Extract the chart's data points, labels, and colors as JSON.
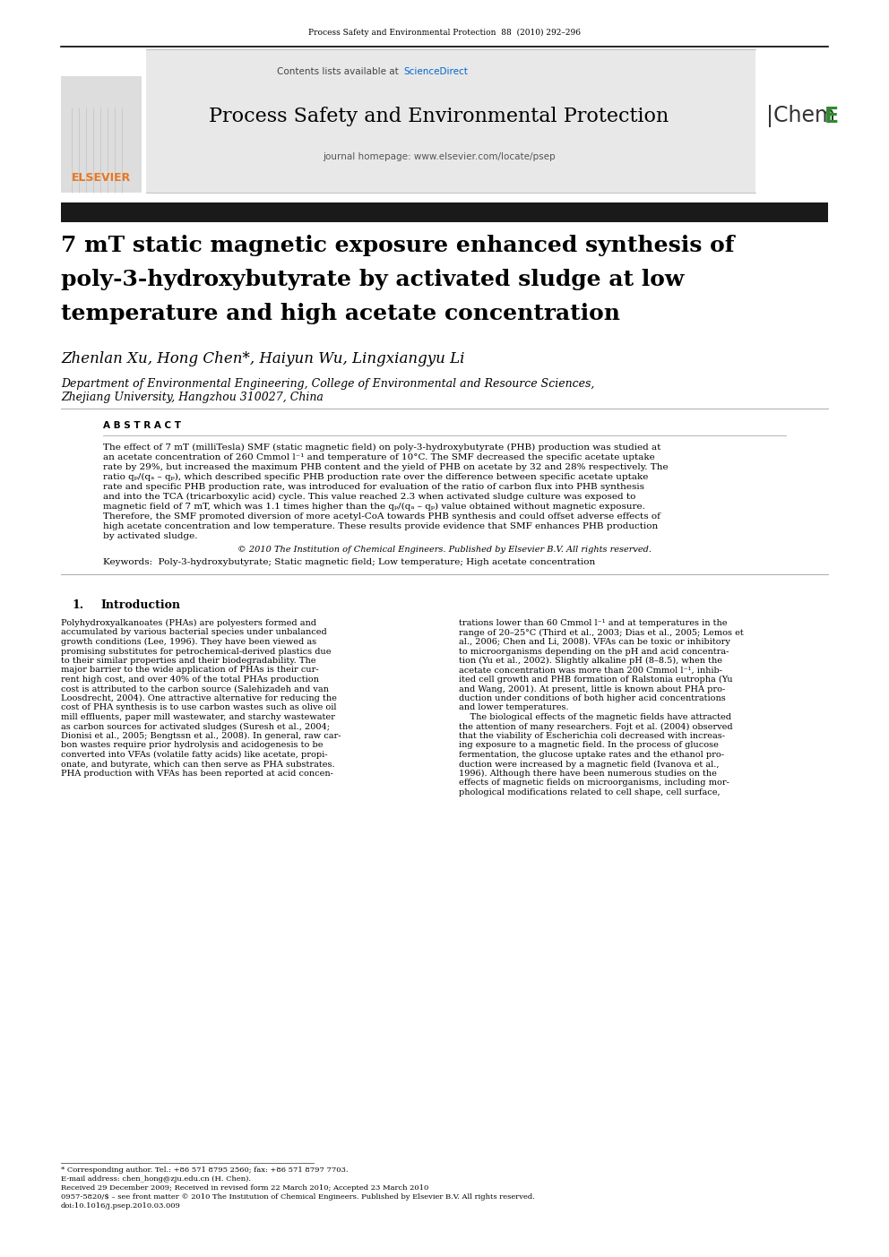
{
  "page_bg": "#ffffff",
  "header_journal": "Process Safety and Environmental Protection  88  (2010) 292–296",
  "header_journal_color": "#000000",
  "banner_bg": "#e8e8e8",
  "banner_contents_text": "Contents lists available at ",
  "banner_sciencedirect_text": "ScienceDirect",
  "banner_sciencedirect_color": "#0066cc",
  "banner_journal_name": "Process Safety and Environmental Protection",
  "banner_journal_name_size": 16,
  "banner_homepage": "journal homepage: www.elsevier.com/locate/psep",
  "ichemE_color_E": "#2e8b2e",
  "elsevier_color": "#e87722",
  "title_bar_color": "#1a1a1a",
  "article_title_line1": "7 mT static magnetic exposure enhanced synthesis of",
  "article_title_line2": "poly-3-hydroxybutyrate by activated sludge at low",
  "article_title_line3": "temperature and high acetate concentration",
  "article_title_size": 18,
  "authors": "Zhenlan Xu, Hong Chen*, Haiyun Wu, Lingxiangyu Li",
  "authors_size": 12,
  "affil1": "Department of Environmental Engineering, College of Environmental and Resource Sciences,",
  "affil2": "Zhejiang University, Hangzhou 310027, China",
  "affil_size": 9,
  "abstract_label": "A B S T R A C T",
  "abstract_text_lines": [
    "The effect of 7 mT (milliTesla) SMF (static magnetic field) on poly-3-hydroxybutyrate (PHB) production was studied at",
    "an acetate concentration of 260 Cmmol l⁻¹ and temperature of 10°C. The SMF decreased the specific acetate uptake",
    "rate by 29%, but increased the maximum PHB content and the yield of PHB on acetate by 32 and 28% respectively. The",
    "ratio qₚ/(qₐ – qₚ), which described specific PHB production rate over the difference between specific acetate uptake",
    "rate and specific PHB production rate, was introduced for evaluation of the ratio of carbon flux into PHB synthesis",
    "and into the TCA (tricarboxylic acid) cycle. This value reached 2.3 when activated sludge culture was exposed to",
    "magnetic field of 7 mT, which was 1.1 times higher than the qₚ/(qₐ – qₚ) value obtained without magnetic exposure.",
    "Therefore, the SMF promoted diversion of more acetyl-CoA towards PHB synthesis and could offset adverse effects of",
    "high acetate concentration and low temperature. These results provide evidence that SMF enhances PHB production",
    "by activated sludge."
  ],
  "abstract_text_size": 7.5,
  "copyright_text": "© 2010 The Institution of Chemical Engineers. Published by Elsevier B.V. All rights reserved.",
  "keywords_text": "Keywords:  Poly-3-hydroxybutyrate; Static magnetic field; Low temperature; High acetate concentration",
  "intro_col1_lines": [
    "Polyhydroxyalkanoates (PHAs) are polyesters formed and",
    "accumulated by various bacterial species under unbalanced",
    "growth conditions (Lee, 1996). They have been viewed as",
    "promising substitutes for petrochemical-derived plastics due",
    "to their similar properties and their biodegradability. The",
    "major barrier to the wide application of PHAs is their cur-",
    "rent high cost, and over 40% of the total PHAs production",
    "cost is attributed to the carbon source (Salehizadeh and van",
    "Loosdrecht, 2004). One attractive alternative for reducing the",
    "cost of PHA synthesis is to use carbon wastes such as olive oil",
    "mill effluents, paper mill wastewater, and starchy wastewater",
    "as carbon sources for activated sludges (Suresh et al., 2004;",
    "Dionisi et al., 2005; Bengtssn et al., 2008). In general, raw car-",
    "bon wastes require prior hydrolysis and acidogenesis to be",
    "converted into VFAs (volatile fatty acids) like acetate, propi-",
    "onate, and butyrate, which can then serve as PHA substrates.",
    "PHA production with VFAs has been reported at acid concen-"
  ],
  "intro_col2_lines": [
    "trations lower than 60 Cmmol l⁻¹ and at temperatures in the",
    "range of 20–25°C (Third et al., 2003; Dias et al., 2005; Lemos et",
    "al., 2006; Chen and Li, 2008). VFAs can be toxic or inhibitory",
    "to microorganisms depending on the pH and acid concentra-",
    "tion (Yu et al., 2002). Slightly alkaline pH (8–8.5), when the",
    "acetate concentration was more than 200 Cmmol l⁻¹, inhib-",
    "ited cell growth and PHB formation of Ralstonia eutropha (Yu",
    "and Wang, 2001). At present, little is known about PHA pro-",
    "duction under conditions of both higher acid concentrations",
    "and lower temperatures.",
    "    The biological effects of the magnetic fields have attracted",
    "the attention of many researchers. Fojt et al. (2004) observed",
    "that the viability of Escherichia coli decreased with increas-",
    "ing exposure to a magnetic field. In the process of glucose",
    "fermentation, the glucose uptake rates and the ethanol pro-",
    "duction were increased by a magnetic field (Ivanova et al.,",
    "1996). Although there have been numerous studies on the",
    "effects of magnetic fields on microorganisms, including mor-",
    "phological modifications related to cell shape, cell surface,"
  ],
  "footnote_corresp": "* Corresponding author. Tel.: +86 571 8795 2560; fax: +86 571 8797 7703.",
  "footnote_email": "E-mail address: chen_hong@zju.edu.cn (H. Chen).",
  "footnote_received": "Received 29 December 2009; Received in revised form 22 March 2010; Accepted 23 March 2010",
  "footnote_issn": "0957-5820/$ – see front matter © 2010 The Institution of Chemical Engineers. Published by Elsevier B.V. All rights reserved.",
  "footnote_doi": "doi:10.1016/j.psep.2010.03.009",
  "link_color": "#0033cc"
}
